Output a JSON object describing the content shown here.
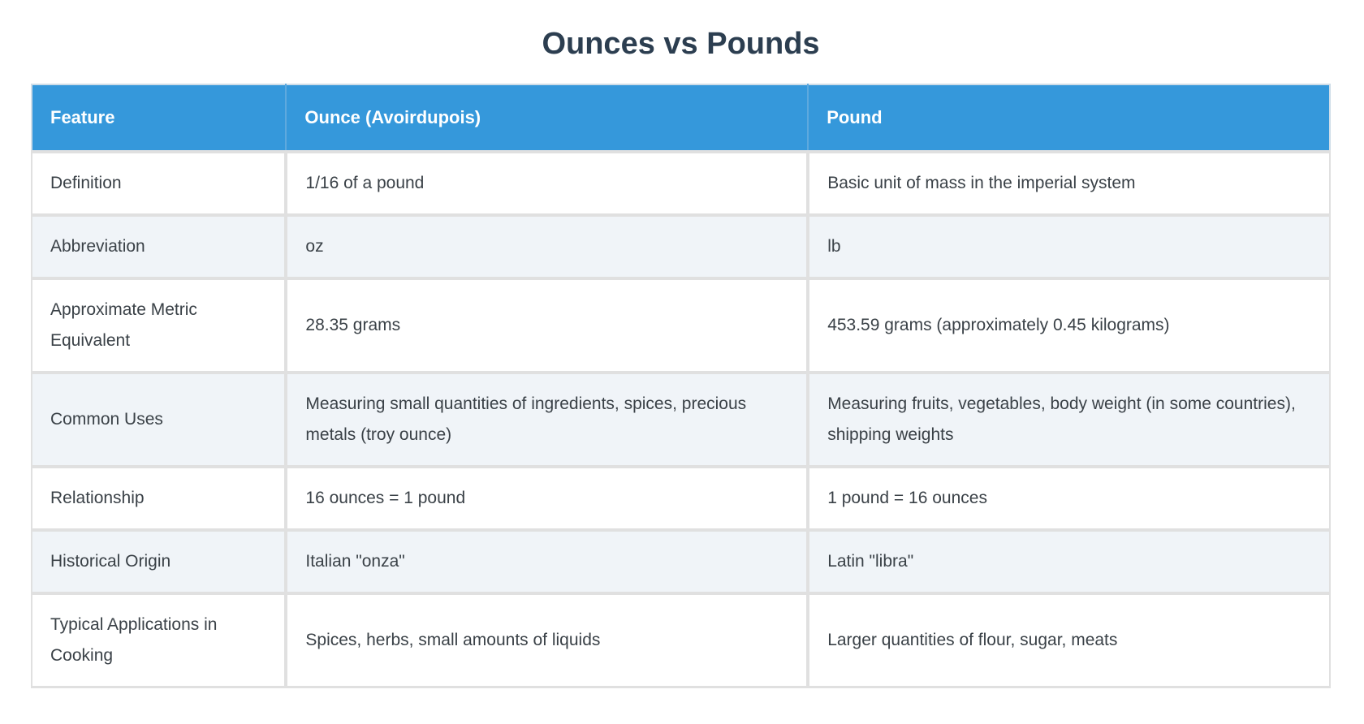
{
  "title": "Ounces vs Pounds",
  "colors": {
    "header_bg": "#3598db",
    "header_text": "#ffffff",
    "header_divider": "#5ea9de",
    "row_alt_bg": "#f0f4f8",
    "border": "#e0e0e0",
    "title_text": "#2c3e50",
    "body_text": "#3a4147"
  },
  "table": {
    "columns": [
      "Feature",
      "Ounce (Avoirdupois)",
      "Pound"
    ],
    "rows": [
      {
        "feature": "Definition",
        "ounce": "1/16 of a pound",
        "pound": "Basic unit of mass in the imperial system"
      },
      {
        "feature": "Abbreviation",
        "ounce": "oz",
        "pound": "lb"
      },
      {
        "feature": "Approximate Metric Equivalent",
        "ounce": "28.35 grams",
        "pound": "453.59 grams (approximately 0.45 kilograms)"
      },
      {
        "feature": "Common Uses",
        "ounce": "Measuring small quantities of ingredients, spices, precious metals (troy ounce)",
        "pound": "Measuring fruits, vegetables, body weight (in some countries), shipping weights"
      },
      {
        "feature": "Relationship",
        "ounce": "16 ounces = 1 pound",
        "pound": "1 pound = 16 ounces"
      },
      {
        "feature": "Historical Origin",
        "ounce": "Italian \"onza\"",
        "pound": "Latin \"libra\""
      },
      {
        "feature": "Typical Applications in Cooking",
        "ounce": "Spices, herbs, small amounts of liquids",
        "pound": "Larger quantities of flour, sugar, meats"
      }
    ]
  }
}
